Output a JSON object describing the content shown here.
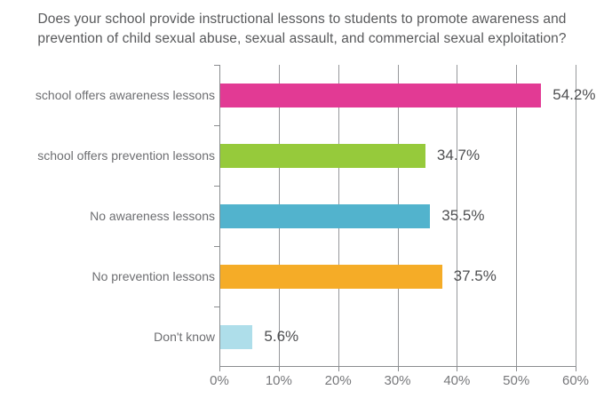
{
  "chart_data": {
    "type": "bar",
    "orientation": "horizontal",
    "title": "Does your school provide instructional lessons to students to promote awareness and prevention of child sexual abuse, sexual assault, and commercial sexual exploitation?",
    "title_lines": [
      "Does your school provide instructional lessons to students to promote awareness and",
      "prevention of child sexual abuse, sexual assault, and commercial sexual exploitation?"
    ],
    "categories": [
      "school offers awareness lessons",
      "school offers prevention lessons",
      "No awareness lessons",
      "No prevention lessons",
      "Don't know"
    ],
    "values": [
      54.2,
      34.7,
      35.5,
      37.5,
      5.6
    ],
    "value_labels": [
      "54.2%",
      "34.7%",
      "35.5%",
      "37.5%",
      "5.6%"
    ],
    "bar_colors": [
      "#E23A94",
      "#96CA3B",
      "#52B3CD",
      "#F5AC27",
      "#AEDEEA"
    ],
    "xlim": [
      0,
      60
    ],
    "x_ticks": [
      "0%",
      "10%",
      "20%",
      "30%",
      "40%",
      "50%",
      "60%"
    ],
    "x_tick_values": [
      0,
      10,
      20,
      30,
      40,
      50,
      60
    ],
    "grid": true,
    "legend": false,
    "xlabel": "",
    "ylabel": ""
  },
  "colors": {
    "background": "#FFFFFF",
    "title_text": "#58595B",
    "category_text": "#6D6E71",
    "value_text": "#4E4F51",
    "tick_text": "#77787B",
    "gridline": "#96989B",
    "axis": "#8A8C8F"
  }
}
